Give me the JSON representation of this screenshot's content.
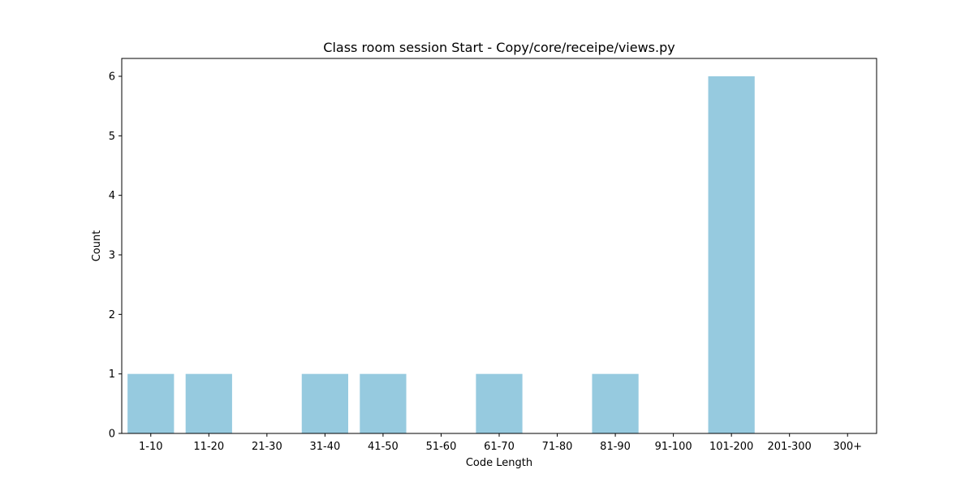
{
  "chart_data": {
    "type": "bar",
    "title": "Class room session Start - Copy/core/receipe/views.py",
    "xlabel": "Code Length",
    "ylabel": "Count",
    "categories": [
      "1-10",
      "11-20",
      "21-30",
      "31-40",
      "41-50",
      "51-60",
      "61-70",
      "71-80",
      "81-90",
      "91-100",
      "101-200",
      "201-300",
      "300+"
    ],
    "values": [
      1,
      1,
      0,
      1,
      1,
      0,
      1,
      0,
      1,
      0,
      6,
      0,
      0
    ],
    "ylim": [
      0,
      6.3
    ],
    "yticks": [
      0,
      1,
      2,
      3,
      4,
      5,
      6
    ],
    "bar_color": "#96cadf",
    "grid": false,
    "legend": "none"
  }
}
